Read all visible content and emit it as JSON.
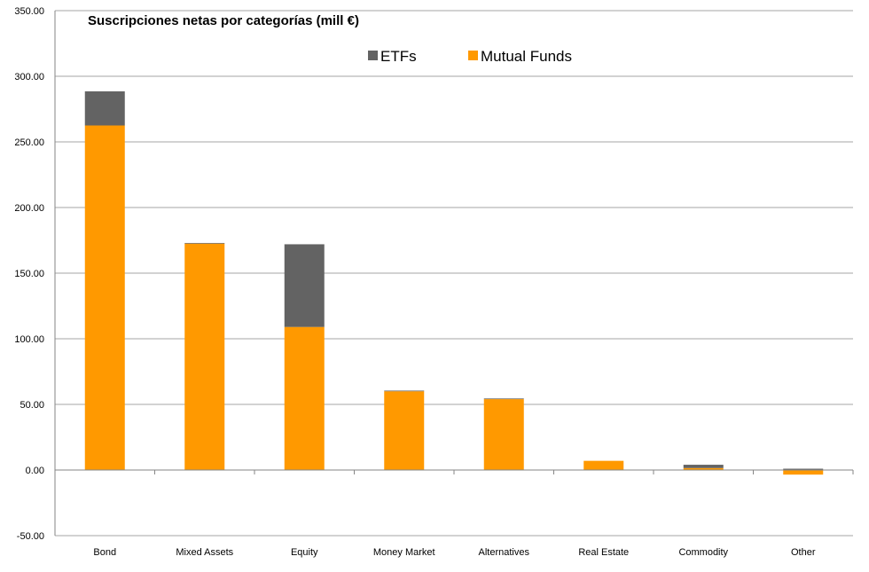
{
  "chart_data": {
    "type": "bar",
    "stacked": true,
    "title": "Suscripciones netas por categorías (mill €)",
    "xlabel": "",
    "ylabel": "",
    "ylim": [
      -50,
      350
    ],
    "ytick_step": 50,
    "ytick_labels": [
      "-50.00",
      "0.00",
      "50.00",
      "100.00",
      "150.00",
      "200.00",
      "250.00",
      "300.00",
      "350.00"
    ],
    "categories": [
      "Bond",
      "Mixed Assets",
      "Equity",
      "Money Market",
      "Alternatives",
      "Real Estate",
      "Commodity",
      "Other"
    ],
    "series": [
      {
        "name": "Mutual Funds",
        "color": "#ff9900",
        "values": [
          262.5,
          172.5,
          109,
          60,
          54,
          7,
          1.5,
          -3.5
        ]
      },
      {
        "name": "ETFs",
        "color": "#636363",
        "values": [
          26,
          0.5,
          63,
          0.5,
          0.5,
          0,
          2.5,
          1
        ]
      }
    ],
    "legend_order": [
      "ETFs",
      "Mutual Funds"
    ],
    "legend_position": "top-center",
    "grid": "horizontal",
    "gridline_color": "#a6a6a6"
  }
}
